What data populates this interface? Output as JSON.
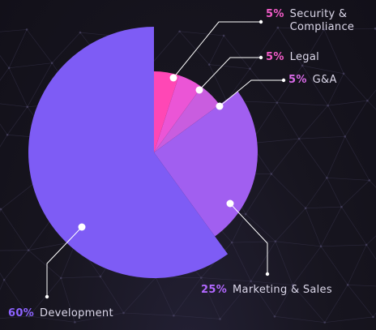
{
  "chart_data": {
    "type": "pie",
    "title": "",
    "slices": [
      {
        "label": "Security & Compliance",
        "label_line1": "Security &",
        "label_line2": "Compliance",
        "value": 5,
        "pct_text": "5%",
        "color": "#ff47b5"
      },
      {
        "label": "Legal",
        "value": 5,
        "pct_text": "5%",
        "color": "#eb55d6"
      },
      {
        "label": "G&A",
        "value": 5,
        "pct_text": "5%",
        "color": "#c95ddf"
      },
      {
        "label": "Marketing & Sales",
        "value": 25,
        "pct_text": "25%",
        "color": "#a15ff0"
      },
      {
        "label": "Development",
        "value": 60,
        "pct_text": "60%",
        "color": "#7e5cf5"
      }
    ],
    "legend_placement": "callout labels around pie"
  }
}
